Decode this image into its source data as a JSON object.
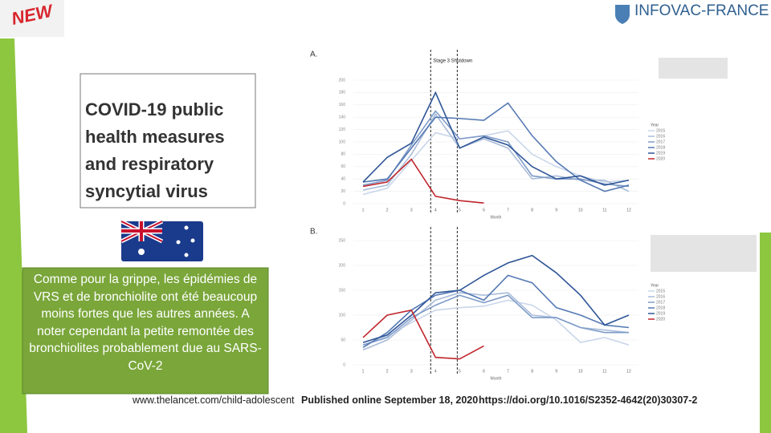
{
  "slide": {
    "badge": "NEW",
    "brand": "INFOVAC-FRANCE",
    "paper_title": "COVID-19 public health measures and respiratory syncytial virus",
    "comment": "Comme pour la grippe, les épidémies de VRS et de bronchiolite ont été beaucoup moins fortes que les autres années. A noter cependant la petite remontée des bronchiolites probablement due au SARS-CoV-2",
    "footer": [
      "www.thelancet.com/child-adolescent",
      "Published online September 18, 2020",
      "https://doi.org/10.1016/S2352-4642(20)30307-2"
    ]
  },
  "chart_data": [
    {
      "type": "line",
      "panel": "A.",
      "annotation": "Stage 3 Shutdown",
      "x_label": "Month",
      "legend_title": "Year",
      "x": [
        1,
        2,
        3,
        4,
        5,
        6,
        7,
        8,
        9,
        10,
        11,
        12
      ],
      "xlim": [
        0.6,
        12.4
      ],
      "xticks": [
        1,
        2,
        3,
        4,
        5,
        6,
        7,
        8,
        9,
        10,
        11,
        12
      ],
      "ylim": [
        0,
        200
      ],
      "yticks": [
        0,
        20,
        40,
        60,
        80,
        100,
        120,
        140,
        160,
        180,
        200
      ],
      "series": [
        {
          "name": "2015",
          "color": "#c9d6ea",
          "values": [
            15,
            25,
            70,
            115,
            105,
            110,
            118,
            80,
            60,
            45,
            35,
            38
          ]
        },
        {
          "name": "2016",
          "color": "#a9bcd9",
          "values": [
            22,
            30,
            80,
            145,
            90,
            105,
            90,
            40,
            45,
            38,
            38,
            20
          ]
        },
        {
          "name": "2017",
          "color": "#7f9cc8",
          "values": [
            30,
            38,
            95,
            150,
            105,
            110,
            100,
            45,
            40,
            40,
            32,
            28
          ]
        },
        {
          "name": "2018",
          "color": "#5579b4",
          "values": [
            35,
            40,
            90,
            140,
            138,
            135,
            163,
            110,
            68,
            38,
            20,
            30
          ]
        },
        {
          "name": "2019",
          "color": "#2f5597",
          "values": [
            35,
            75,
            98,
            180,
            90,
            108,
            95,
            60,
            40,
            45,
            30,
            38
          ]
        },
        {
          "name": "2020",
          "color": "#c0262d",
          "values": [
            28,
            35,
            72,
            12,
            5,
            1,
            null,
            null,
            null,
            null,
            null,
            null
          ]
        }
      ]
    },
    {
      "type": "line",
      "panel": "B.",
      "x_label": "Month",
      "legend_title": "Year",
      "x": [
        1,
        2,
        3,
        4,
        5,
        6,
        7,
        8,
        9,
        10,
        11,
        12
      ],
      "xlim": [
        0.6,
        12.4
      ],
      "xticks": [
        1,
        2,
        3,
        4,
        5,
        6,
        7,
        8,
        9,
        10,
        11,
        12
      ],
      "ylim": [
        0,
        250
      ],
      "yticks": [
        0,
        50,
        100,
        150,
        200,
        250
      ],
      "series": [
        {
          "name": "2015",
          "color": "#c9d6ea",
          "values": [
            40,
            58,
            85,
            110,
            115,
            118,
            130,
            120,
            90,
            45,
            55,
            40
          ]
        },
        {
          "name": "2016",
          "color": "#a9bcd9",
          "values": [
            30,
            50,
            90,
            130,
            145,
            140,
            145,
            100,
            95,
            75,
            70,
            65
          ]
        },
        {
          "name": "2017",
          "color": "#7f9cc8",
          "values": [
            40,
            55,
            95,
            120,
            140,
            125,
            140,
            95,
            95,
            75,
            65,
            65
          ]
        },
        {
          "name": "2018",
          "color": "#5579b4",
          "values": [
            35,
            65,
            110,
            140,
            150,
            130,
            180,
            165,
            115,
            100,
            80,
            75
          ]
        },
        {
          "name": "2019",
          "color": "#2f5597",
          "values": [
            45,
            60,
            100,
            145,
            150,
            180,
            205,
            220,
            185,
            140,
            80,
            100
          ]
        },
        {
          "name": "2020",
          "color": "#c0262d",
          "values": [
            55,
            100,
            110,
            15,
            12,
            38,
            null,
            null,
            null,
            null,
            null,
            null
          ]
        }
      ]
    }
  ]
}
